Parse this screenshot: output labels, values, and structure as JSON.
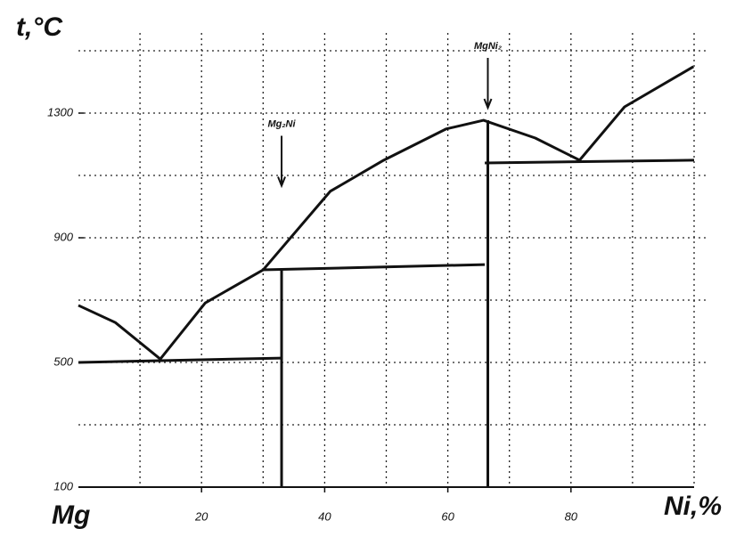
{
  "chart_data": {
    "type": "line",
    "y_label": "t,°C",
    "x_label": "Ni,%",
    "x_start_label": "Mg",
    "annotations": [
      {
        "text": "Mg₂Ni",
        "x": 33,
        "y": 1050
      },
      {
        "text": "MgNi₂",
        "x": 66.5,
        "y": 1300
      }
    ],
    "xlim": [
      0,
      100
    ],
    "ylim": [
      100,
      1500
    ],
    "xticks": [
      20,
      40,
      60,
      80
    ],
    "yticks": [
      100,
      500,
      900,
      1300
    ],
    "xgrid": [
      10,
      20,
      30,
      40,
      50,
      60,
      70,
      80,
      90,
      100
    ],
    "ygrid": [
      300,
      500,
      700,
      900,
      1100,
      1300,
      1500
    ],
    "color": "#111111",
    "series": [
      {
        "x": [
          0,
          6,
          13.3,
          20.6,
          30,
          40.9,
          49.6,
          59.7,
          65.8,
          74.2,
          81.4,
          88.7,
          99.9
        ],
        "values": [
          683,
          628,
          511,
          691,
          797,
          1049,
          1149,
          1249,
          1277,
          1220,
          1149,
          1320,
          1449
        ]
      },
      {
        "x": [
          0,
          33
        ],
        "values": [
          500,
          514
        ]
      },
      {
        "x": [
          29.8,
          66
        ],
        "values": [
          797,
          814
        ]
      },
      {
        "x": [
          33,
          33
        ],
        "values": [
          797,
          100
        ]
      },
      {
        "x": [
          66,
          100
        ],
        "values": [
          1140,
          1149
        ]
      },
      {
        "x": [
          66.5,
          66.5
        ],
        "values": [
          1277,
          100
        ]
      }
    ]
  }
}
